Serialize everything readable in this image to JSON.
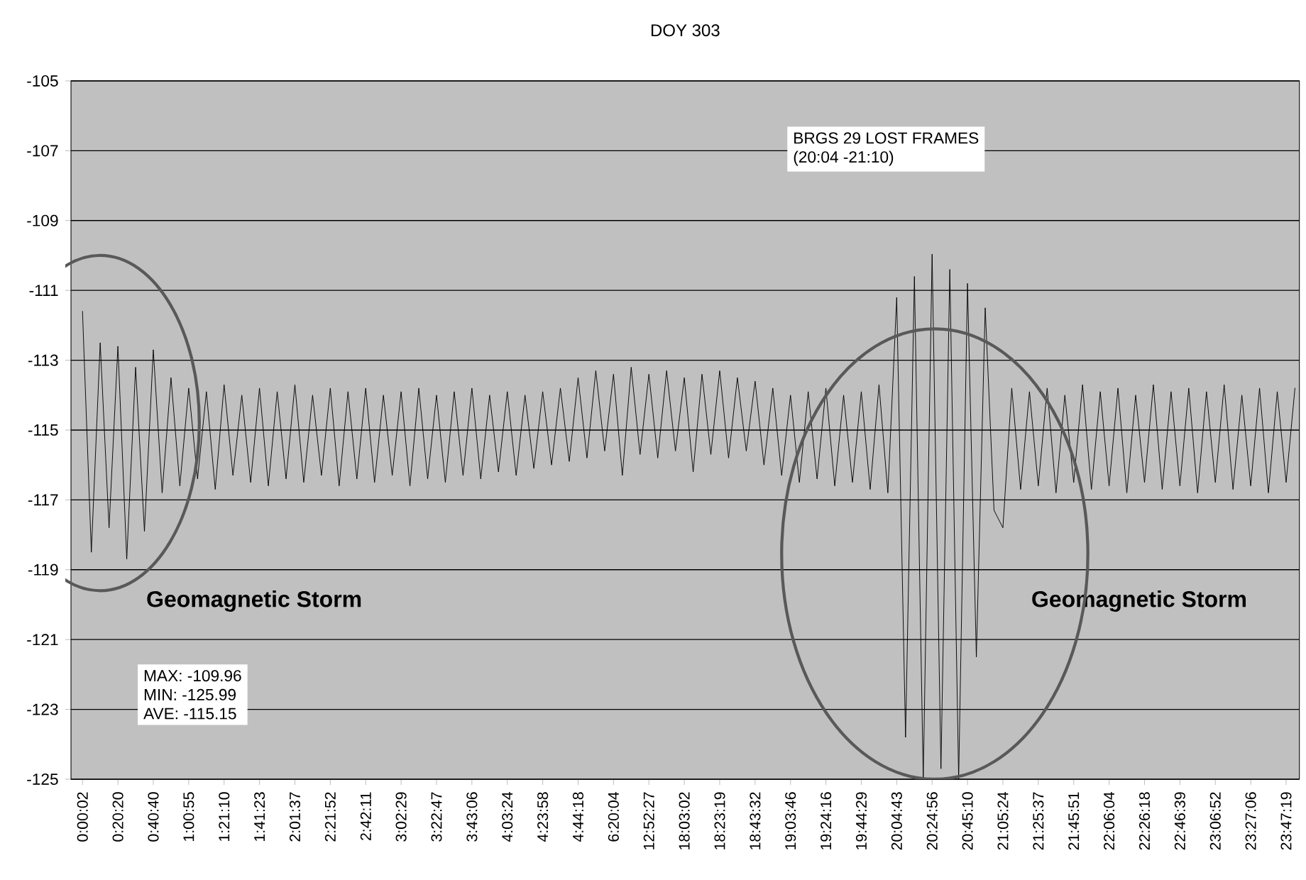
{
  "chart_data": {
    "type": "line",
    "title": "DOY 303",
    "categories": [
      "0:00:02",
      null,
      null,
      null,
      "0:20:20",
      null,
      null,
      null,
      "0:40:40",
      null,
      null,
      null,
      "1:00:55",
      null,
      null,
      null,
      "1:21:10",
      null,
      null,
      null,
      "1:41:23",
      null,
      null,
      null,
      "2:01:37",
      null,
      null,
      null,
      "2:21:52",
      null,
      null,
      null,
      "2:42:11",
      null,
      null,
      null,
      "3:02:29",
      null,
      null,
      null,
      "3:22:47",
      null,
      null,
      null,
      "3:43:06",
      null,
      null,
      null,
      "4:03:24",
      null,
      null,
      null,
      "4:23:58",
      null,
      null,
      null,
      "4:44:18",
      null,
      null,
      null,
      "6:20:04",
      null,
      null,
      null,
      "12:52:27",
      null,
      null,
      null,
      "18:03:02",
      null,
      null,
      null,
      "18:23:19",
      null,
      null,
      null,
      "18:43:32",
      null,
      null,
      null,
      "19:03:46",
      null,
      null,
      null,
      "19:24:16",
      null,
      null,
      null,
      "19:44:29",
      null,
      null,
      null,
      "20:04:43",
      null,
      null,
      null,
      "20:24:56",
      null,
      null,
      null,
      "20:45:10",
      null,
      null,
      null,
      "21:05:24",
      null,
      null,
      null,
      "21:25:37",
      null,
      null,
      null,
      "21:45:51",
      null,
      null,
      null,
      "22:06:04",
      null,
      null,
      null,
      "22:26:18",
      null,
      null,
      null,
      "22:46:39",
      null,
      null,
      null,
      "23:06:52",
      null,
      null,
      null,
      "23:27:06",
      null,
      null,
      null,
      "23:47:19",
      null
    ],
    "values": [
      -111.6,
      -118.5,
      -112.5,
      -117.8,
      -112.6,
      -118.7,
      -113.2,
      -117.9,
      -112.7,
      -116.8,
      -113.5,
      -116.6,
      -113.8,
      -116.4,
      -113.9,
      -116.7,
      -113.7,
      -116.3,
      -114.0,
      -116.5,
      -113.8,
      -116.6,
      -113.9,
      -116.4,
      -113.7,
      -116.5,
      -114.0,
      -116.3,
      -113.8,
      -116.6,
      -113.9,
      -116.4,
      -113.8,
      -116.5,
      -114.0,
      -116.3,
      -113.9,
      -116.6,
      -113.8,
      -116.4,
      -114.0,
      -116.5,
      -113.9,
      -116.3,
      -113.8,
      -116.4,
      -114.0,
      -116.2,
      -113.9,
      -116.3,
      -114.0,
      -116.1,
      -113.9,
      -116.0,
      -113.8,
      -115.9,
      -113.5,
      -115.8,
      -113.3,
      -115.6,
      -113.4,
      -116.3,
      -113.2,
      -115.7,
      -113.4,
      -115.8,
      -113.3,
      -115.6,
      -113.5,
      -116.2,
      -113.4,
      -115.7,
      -113.3,
      -115.8,
      -113.5,
      -115.6,
      -113.6,
      -116.0,
      -113.8,
      -116.3,
      -114.0,
      -116.5,
      -113.9,
      -116.4,
      -113.8,
      -116.6,
      -114.0,
      -116.5,
      -113.9,
      -116.7,
      -113.7,
      -116.8,
      -111.2,
      -123.8,
      -110.6,
      -125.0,
      -109.96,
      -124.7,
      -110.4,
      -125.0,
      -110.8,
      -121.5,
      -111.5,
      -117.3,
      -117.8,
      -113.8,
      -116.7,
      -113.9,
      -116.6,
      -113.8,
      -116.8,
      -114.0,
      -116.5,
      -113.7,
      -116.7,
      -113.9,
      -116.6,
      -113.8,
      -116.8,
      -114.0,
      -116.5,
      -113.7,
      -116.7,
      -113.9,
      -116.6,
      -113.8,
      -116.8,
      -113.9,
      -116.5,
      -113.7,
      -116.7,
      -114.0,
      -116.6,
      -113.8,
      -116.8,
      -113.9,
      -116.5,
      -113.8
    ],
    "color": "#000000",
    "ylim": [
      -125,
      -105
    ],
    "yticks": [
      -105,
      -107,
      -109,
      -111,
      -113,
      -115,
      -117,
      -119,
      -121,
      -123,
      -125
    ],
    "grid": "y",
    "annotations": [
      "BRGS 29 LOST FRAMES",
      "(20:04 -21:10)",
      "Geomagnetic Storm",
      "Geomagnetic Storm",
      "MAX: -109.96",
      "MIN: -125.99",
      "AVE: -115.15"
    ]
  }
}
